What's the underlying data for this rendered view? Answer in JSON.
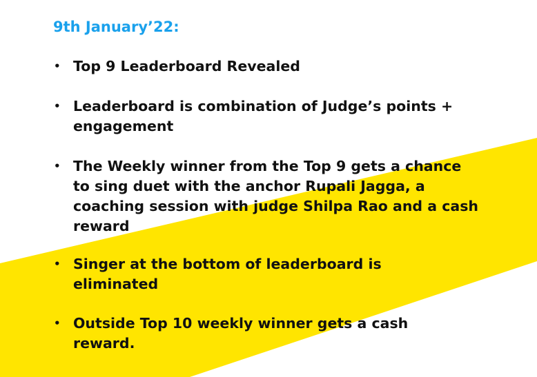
{
  "heading": "9th January’22:",
  "bullet_glyph": "•",
  "colors": {
    "heading": "#1aa1ec",
    "accent_stripe": "#ffe500",
    "text": "#111111",
    "background": "#ffffff"
  },
  "bullets": [
    {
      "text": "Top 9 Leaderboard Revealed"
    },
    {
      "text": "Leaderboard is combination of Judge’s points + engagement"
    },
    {
      "text": "The Weekly winner from the Top 9 gets a chance to sing duet with the anchor Rupali Jagga, a coaching session with judge Shilpa Rao and a cash reward"
    },
    {
      "text": "Singer at the bottom of leaderboard is eliminated"
    },
    {
      "text": "Outside Top 10 weekly winner gets a cash reward."
    }
  ]
}
